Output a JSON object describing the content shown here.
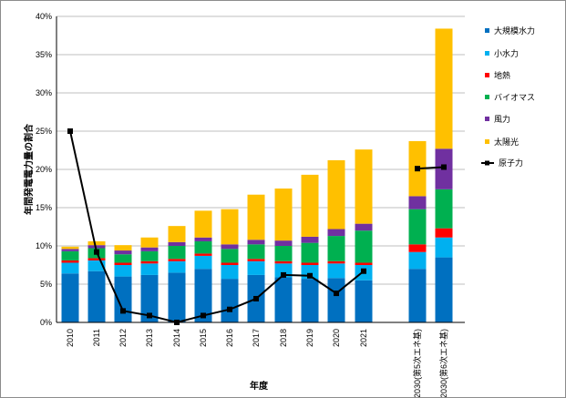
{
  "chart_data": {
    "type": "bar",
    "stacked": true,
    "xlabel": "年度",
    "ylabel": "年間発電電力量の割合",
    "ylim": [
      0,
      40
    ],
    "yticks": [
      "0%",
      "5%",
      "10%",
      "15%",
      "20%",
      "25%",
      "30%",
      "35%",
      "40%"
    ],
    "grid": true,
    "legend_position": "right",
    "categories": [
      "2010",
      "2011",
      "2012",
      "2013",
      "2014",
      "2015",
      "2016",
      "2017",
      "2018",
      "2019",
      "2020",
      "2021",
      "2030(第5次エネ基)",
      "2030(第6次エネ基)"
    ],
    "series": [
      {
        "name": "大規模水力",
        "color": "#0070C0",
        "values": [
          6.4,
          6.7,
          6.0,
          6.2,
          6.5,
          7.0,
          5.7,
          6.2,
          5.9,
          5.7,
          5.8,
          5.5,
          7.0,
          8.5
        ]
      },
      {
        "name": "小水力",
        "color": "#00B0F0",
        "values": [
          1.4,
          1.4,
          1.5,
          1.5,
          1.5,
          1.7,
          1.8,
          1.8,
          1.8,
          1.8,
          1.9,
          2.0,
          2.2,
          2.6
        ]
      },
      {
        "name": "地熱",
        "color": "#FF0000",
        "values": [
          0.3,
          0.3,
          0.3,
          0.3,
          0.3,
          0.3,
          0.3,
          0.3,
          0.3,
          0.3,
          0.3,
          0.3,
          1.0,
          1.2
        ]
      },
      {
        "name": "バイオマス",
        "color": "#00B050",
        "values": [
          1.2,
          1.3,
          1.1,
          1.3,
          1.7,
          1.6,
          1.8,
          1.9,
          2.0,
          2.6,
          3.3,
          4.2,
          4.6,
          5.1
        ]
      },
      {
        "name": "風力",
        "color": "#7030A0",
        "values": [
          0.3,
          0.4,
          0.5,
          0.5,
          0.5,
          0.5,
          0.6,
          0.6,
          0.7,
          0.8,
          0.9,
          0.9,
          1.7,
          5.3
        ]
      },
      {
        "name": "太陽光",
        "color": "#FFC000",
        "values": [
          0.3,
          0.5,
          0.7,
          1.3,
          2.1,
          3.5,
          4.6,
          5.9,
          6.8,
          8.1,
          9.0,
          9.7,
          7.2,
          15.7
        ]
      }
    ],
    "line_series": {
      "name": "原子力",
      "color": "#000000",
      "values": [
        25.0,
        9.2,
        1.5,
        0.9,
        0.0,
        0.9,
        1.7,
        3.1,
        6.2,
        6.1,
        3.8,
        6.7,
        20.1,
        20.3
      ]
    },
    "line_breaks_after_index": [
      11
    ]
  }
}
